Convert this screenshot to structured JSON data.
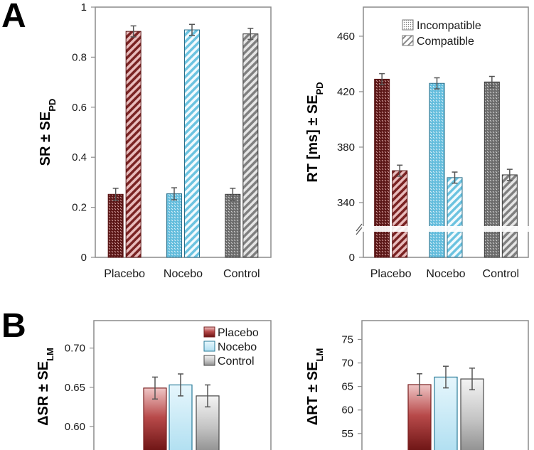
{
  "panels": {
    "a": "A",
    "b": "B"
  },
  "chart_data": [
    {
      "id": "sr",
      "type": "bar",
      "panel": "A",
      "ylabel_main": "SR ± SE",
      "ylabel_sub": "PD",
      "categories": [
        "Placebo",
        "Nocebo",
        "Control"
      ],
      "series": [
        {
          "name": "Incompatible",
          "values": [
            0.252,
            0.254,
            0.252
          ],
          "errors": [
            0.024,
            0.024,
            0.024
          ]
        },
        {
          "name": "Compatible",
          "values": [
            0.903,
            0.909,
            0.893
          ],
          "errors": [
            0.022,
            0.022,
            0.022
          ]
        }
      ],
      "ylim": [
        0,
        1
      ],
      "yticks": [
        0,
        0.2,
        0.4,
        0.6,
        0.8,
        1
      ],
      "ytick_labels": [
        "0",
        "0.2",
        "0.4",
        "0.6",
        "0.8",
        "1"
      ]
    },
    {
      "id": "rt",
      "type": "bar",
      "panel": "A",
      "ylabel_main": "RT [ms] ± SE",
      "ylabel_sub": "PD",
      "broken_axis": true,
      "categories": [
        "Placebo",
        "Nocebo",
        "Control"
      ],
      "series": [
        {
          "name": "Incompatible",
          "values": [
            429,
            426,
            427
          ],
          "errors": [
            4,
            4,
            4
          ]
        },
        {
          "name": "Compatible",
          "values": [
            363,
            358,
            360
          ],
          "errors": [
            4,
            4,
            4
          ]
        }
      ],
      "ylim": [
        320,
        480
      ],
      "yticks": [
        340,
        380,
        420,
        460
      ],
      "ytick_labels": [
        "0",
        "340",
        "380",
        "420",
        "460"
      ],
      "legend": [
        "Incompatible",
        "Compatible"
      ]
    },
    {
      "id": "dsr",
      "type": "bar",
      "panel": "B",
      "ylabel_main": "ΔSR ± SE",
      "ylabel_sub": "LM",
      "categories": [
        "Placebo",
        "Nocebo",
        "Control"
      ],
      "values": [
        0.649,
        0.653,
        0.639
      ],
      "errors": [
        0.014,
        0.014,
        0.014
      ],
      "ylim": [
        0.57,
        0.735
      ],
      "yticks": [
        0.6,
        0.65,
        0.7
      ],
      "ytick_labels": [
        "0.60",
        "0.65",
        "0.70"
      ],
      "legend": [
        "Placebo",
        "Nocebo",
        "Control"
      ]
    },
    {
      "id": "drt",
      "type": "bar",
      "panel": "B",
      "ylabel_main": "ΔRT ± SE",
      "ylabel_sub": "LM",
      "categories": [
        "Placebo",
        "Nocebo",
        "Control"
      ],
      "values": [
        65.4,
        67.0,
        66.6
      ],
      "errors": [
        2.3,
        2.3,
        2.3
      ],
      "ylim": [
        51.5,
        79
      ],
      "yticks": [
        55,
        60,
        65,
        70,
        75
      ],
      "ytick_labels": [
        "55",
        "60",
        "65",
        "70",
        "75"
      ]
    }
  ],
  "colors": {
    "placebo_dark": "#5a1515",
    "placebo_light": "#cf8a8a",
    "placebo_mid": "#9c3a3a",
    "nocebo_dark": "#5eb8d8",
    "nocebo_light": "#b7e1f0",
    "nocebo_edge": "#2a6f8a",
    "control_dark": "#686868",
    "control_light": "#b8b8b8",
    "control_edge": "#3a3a3a",
    "frame": "#8c8c8c",
    "error": "#555555"
  }
}
